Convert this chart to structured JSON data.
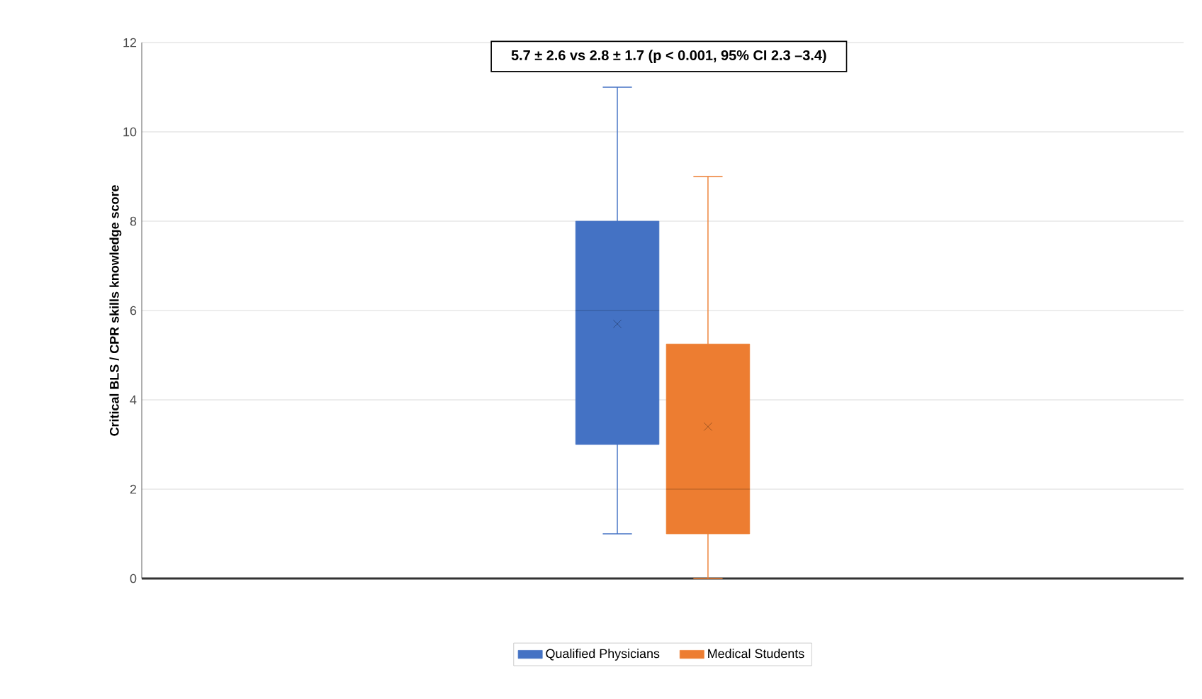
{
  "chart_data": {
    "type": "box",
    "ylabel": "Critical BLS / CPR skills knowledge score",
    "annotations": [
      "5.7 ± 2.6 vs 2.8 ± 1.7 (p < 0.001, 95% CI 2.3 –3.4)"
    ],
    "categories": [
      null
    ],
    "series": [
      {
        "name": "Qualified Physicians",
        "color": "#4472c4",
        "boxes": [
          {
            "low": 1,
            "q1": 3,
            "median": 6,
            "q3": 8,
            "high": 11,
            "mean": 5.7
          }
        ]
      },
      {
        "name": "Medical Students",
        "color": "#ed7d31",
        "boxes": [
          {
            "low": 0,
            "q1": 1,
            "median": 2,
            "q3": 5.25,
            "high": 9,
            "mean": 3.4
          }
        ]
      }
    ],
    "ylim": [
      0,
      12
    ],
    "yticks": [
      0,
      2,
      4,
      6,
      8,
      10,
      12
    ],
    "grid": "y",
    "legend": "bottom",
    "marker": "cross"
  }
}
